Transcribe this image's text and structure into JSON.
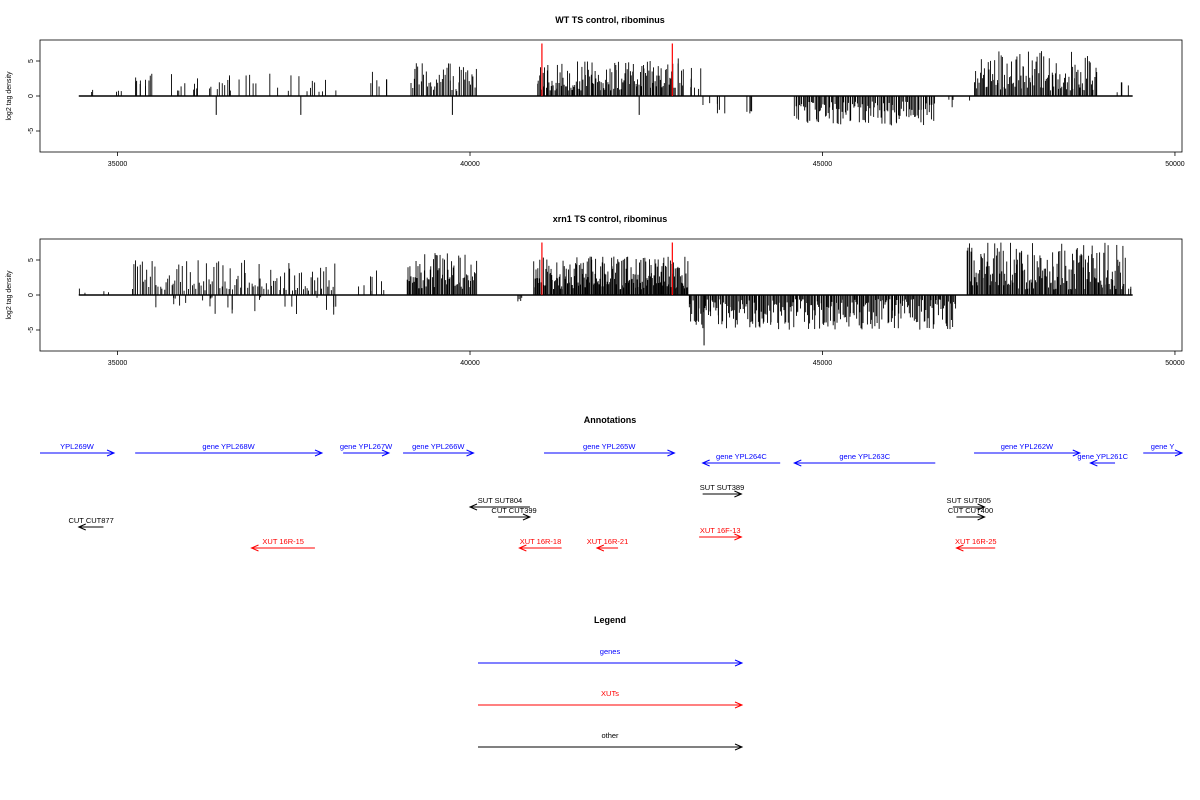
{
  "chart_data": [
    {
      "type": "bar",
      "title": "WT TS control, ribominus",
      "ylabel": "log2 tag density",
      "xlim": [
        33900,
        50100
      ],
      "ylim": [
        -8,
        8
      ],
      "x_ticks": [
        35000,
        40000,
        45000,
        50000
      ],
      "y_ticks": [
        -5,
        0,
        5
      ],
      "x_range": [
        34450,
        49400
      ],
      "grid": false,
      "highlight_lines": {
        "color": "#ff0000",
        "x": [
          41020,
          42870
        ],
        "y": 7.5
      },
      "tracks": [
        {
          "x": [
            34450,
            35200
          ],
          "min": 0.4,
          "max": 1.4,
          "sign": 1,
          "n": 5,
          "dense": false
        },
        {
          "x": [
            35200,
            37200
          ],
          "min": 0.6,
          "max": 3.2,
          "sign": 1,
          "n": 35,
          "dense": false
        },
        {
          "x": [
            37200,
            38100
          ],
          "min": 0.6,
          "max": 3.0,
          "sign": 1,
          "n": 12,
          "dense": false
        },
        {
          "x": [
            38400,
            39000
          ],
          "min": 0.6,
          "max": 3.5,
          "sign": 1,
          "n": 6,
          "dense": false
        },
        {
          "x": [
            39150,
            40100
          ],
          "min": 0.6,
          "max": 5.0,
          "sign": 1,
          "n": 45,
          "dense": true
        },
        {
          "x": [
            40950,
            42920
          ],
          "min": 0.8,
          "max": 5.0,
          "sign": 1,
          "n": 130,
          "dense": true
        },
        {
          "x": [
            42920,
            43300
          ],
          "min": 0.5,
          "max": 5.5,
          "sign": 1,
          "n": 12,
          "dense": false
        },
        {
          "x": [
            43300,
            44200
          ],
          "min": 0.3,
          "max": 2.5,
          "sign": -1,
          "n": 10,
          "dense": false
        },
        {
          "x": [
            44600,
            46600
          ],
          "min": 0.8,
          "max": 4.2,
          "sign": -1,
          "n": 120,
          "dense": true
        },
        {
          "x": [
            46600,
            47100
          ],
          "min": 0.3,
          "max": 1.8,
          "sign": -1,
          "n": 4,
          "dense": false
        },
        {
          "x": [
            47150,
            48900
          ],
          "min": 0.8,
          "max": 6.5,
          "sign": 1,
          "n": 110,
          "dense": true
        },
        {
          "x": [
            49150,
            49400
          ],
          "min": 0.5,
          "max": 2.2,
          "sign": 1,
          "n": 4,
          "dense": false
        }
      ],
      "sparse_negatives": [
        36400,
        37600,
        39750,
        42400
      ]
    },
    {
      "type": "bar",
      "title": "xrn1 TS control, ribominus",
      "ylabel": "log2 tag density",
      "xlim": [
        33900,
        50100
      ],
      "ylim": [
        -8,
        8
      ],
      "x_ticks": [
        35000,
        40000,
        45000,
        50000
      ],
      "y_ticks": [
        -5,
        0,
        5
      ],
      "x_range": [
        34450,
        49400
      ],
      "grid": false,
      "highlight_lines": {
        "color": "#ff0000",
        "x": [
          41020,
          42870
        ],
        "y": 7.5
      },
      "tracks": [
        {
          "x": [
            34450,
            35000
          ],
          "min": 0.3,
          "max": 1.2,
          "sign": 1,
          "n": 4,
          "dense": false
        },
        {
          "x": [
            35200,
            38100
          ],
          "min": 0.6,
          "max": 5.0,
          "sign": 1,
          "n": 110,
          "dense": true
        },
        {
          "x": [
            35500,
            38100
          ],
          "min": 0.3,
          "max": 3.0,
          "sign": -1,
          "n": 25,
          "dense": false
        },
        {
          "x": [
            38400,
            38900
          ],
          "min": 0.5,
          "max": 4.0,
          "sign": 1,
          "n": 8,
          "dense": false
        },
        {
          "x": [
            39100,
            40100
          ],
          "min": 0.8,
          "max": 6.0,
          "sign": 1,
          "n": 70,
          "dense": true
        },
        {
          "x": [
            40600,
            40900
          ],
          "min": 0.3,
          "max": 1.5,
          "sign": -1,
          "n": 4,
          "dense": false
        },
        {
          "x": [
            40900,
            43100
          ],
          "min": 0.8,
          "max": 5.5,
          "sign": 1,
          "n": 200,
          "dense": true
        },
        {
          "x": [
            43100,
            46900
          ],
          "min": 0.6,
          "max": 5.0,
          "sign": -1,
          "n": 260,
          "dense": true
        },
        {
          "x": [
            47050,
            49300
          ],
          "min": 0.8,
          "max": 7.5,
          "sign": 1,
          "n": 170,
          "dense": true
        },
        {
          "x": [
            49300,
            49400
          ],
          "min": 0.5,
          "max": 2.0,
          "sign": 1,
          "n": 3,
          "dense": false
        }
      ],
      "sparse_negatives": [
        43320
      ]
    }
  ],
  "annotations": {
    "title": "Annotations",
    "colors": {
      "gene": "#0000ff",
      "xut": "#ff0000",
      "other": "#000000"
    },
    "items": [
      {
        "label": "YPL269W",
        "kind": "gene",
        "x1": 33900,
        "x2": 34950,
        "row": 0,
        "dir": 1
      },
      {
        "label": "gene YPL268W",
        "kind": "gene",
        "x1": 35250,
        "x2": 37900,
        "row": 0,
        "dir": 1
      },
      {
        "label": "gene YPL267W",
        "kind": "gene",
        "x1": 38200,
        "x2": 38850,
        "row": 0,
        "dir": 1
      },
      {
        "label": "gene YPL266W",
        "kind": "gene",
        "x1": 39050,
        "x2": 40050,
        "row": 0,
        "dir": 1
      },
      {
        "label": "gene YPL265W",
        "kind": "gene",
        "x1": 41050,
        "x2": 42900,
        "row": 0,
        "dir": 1
      },
      {
        "label": "gene YPL264C",
        "kind": "gene",
        "x1": 43300,
        "x2": 44400,
        "row": 1,
        "dir": -1
      },
      {
        "label": "gene YPL263C",
        "kind": "gene",
        "x1": 44600,
        "x2": 46600,
        "row": 1,
        "dir": -1
      },
      {
        "label": "gene YPL262W",
        "kind": "gene",
        "x1": 47150,
        "x2": 48650,
        "row": 0,
        "dir": 1
      },
      {
        "label": "gene YPL261C",
        "kind": "gene",
        "x1": 48800,
        "x2": 49150,
        "row": 1,
        "dir": -1
      },
      {
        "label": "gene Y",
        "kind": "gene",
        "x1": 49550,
        "x2": 50100,
        "row": 0,
        "dir": 1
      },
      {
        "label": "SUT SUT804",
        "kind": "other",
        "x1": 40000,
        "x2": 40850,
        "row": 2,
        "dir": -1
      },
      {
        "label": "CUT CUT399",
        "kind": "other",
        "x1": 40400,
        "x2": 40850,
        "row": 3,
        "dir": 1
      },
      {
        "label": "SUT SUT389",
        "kind": "other",
        "x1": 43300,
        "x2": 43850,
        "row": 4,
        "dir": 1
      },
      {
        "label": "SUT SUT805",
        "kind": "other",
        "x1": 46850,
        "x2": 47300,
        "row": 2,
        "dir": 1
      },
      {
        "label": "CUT CUT400",
        "kind": "other",
        "x1": 46900,
        "x2": 47300,
        "row": 3,
        "dir": 1
      },
      {
        "label": "CUT CUT877",
        "kind": "other",
        "x1": 34450,
        "x2": 34800,
        "row": 5,
        "dir": -1
      },
      {
        "label": "XUT 16R-15",
        "kind": "xut",
        "x1": 36900,
        "x2": 37800,
        "row": 6,
        "dir": -1
      },
      {
        "label": "XUT 16R-18",
        "kind": "xut",
        "x1": 40700,
        "x2": 41300,
        "row": 6,
        "dir": -1
      },
      {
        "label": "XUT 16R-21",
        "kind": "xut",
        "x1": 41800,
        "x2": 42100,
        "row": 6,
        "dir": -1
      },
      {
        "label": "XUT 16F-13",
        "kind": "xut",
        "x1": 43250,
        "x2": 43850,
        "row": 7,
        "dir": 1
      },
      {
        "label": "XUT 16R-25",
        "kind": "xut",
        "x1": 46900,
        "x2": 47450,
        "row": 6,
        "dir": -1
      }
    ]
  },
  "legend": {
    "title": "Legend",
    "entries": [
      {
        "label": "genes",
        "color": "#0000ff"
      },
      {
        "label": "XUTs",
        "color": "#ff0000"
      },
      {
        "label": "other",
        "color": "#000000"
      }
    ]
  }
}
